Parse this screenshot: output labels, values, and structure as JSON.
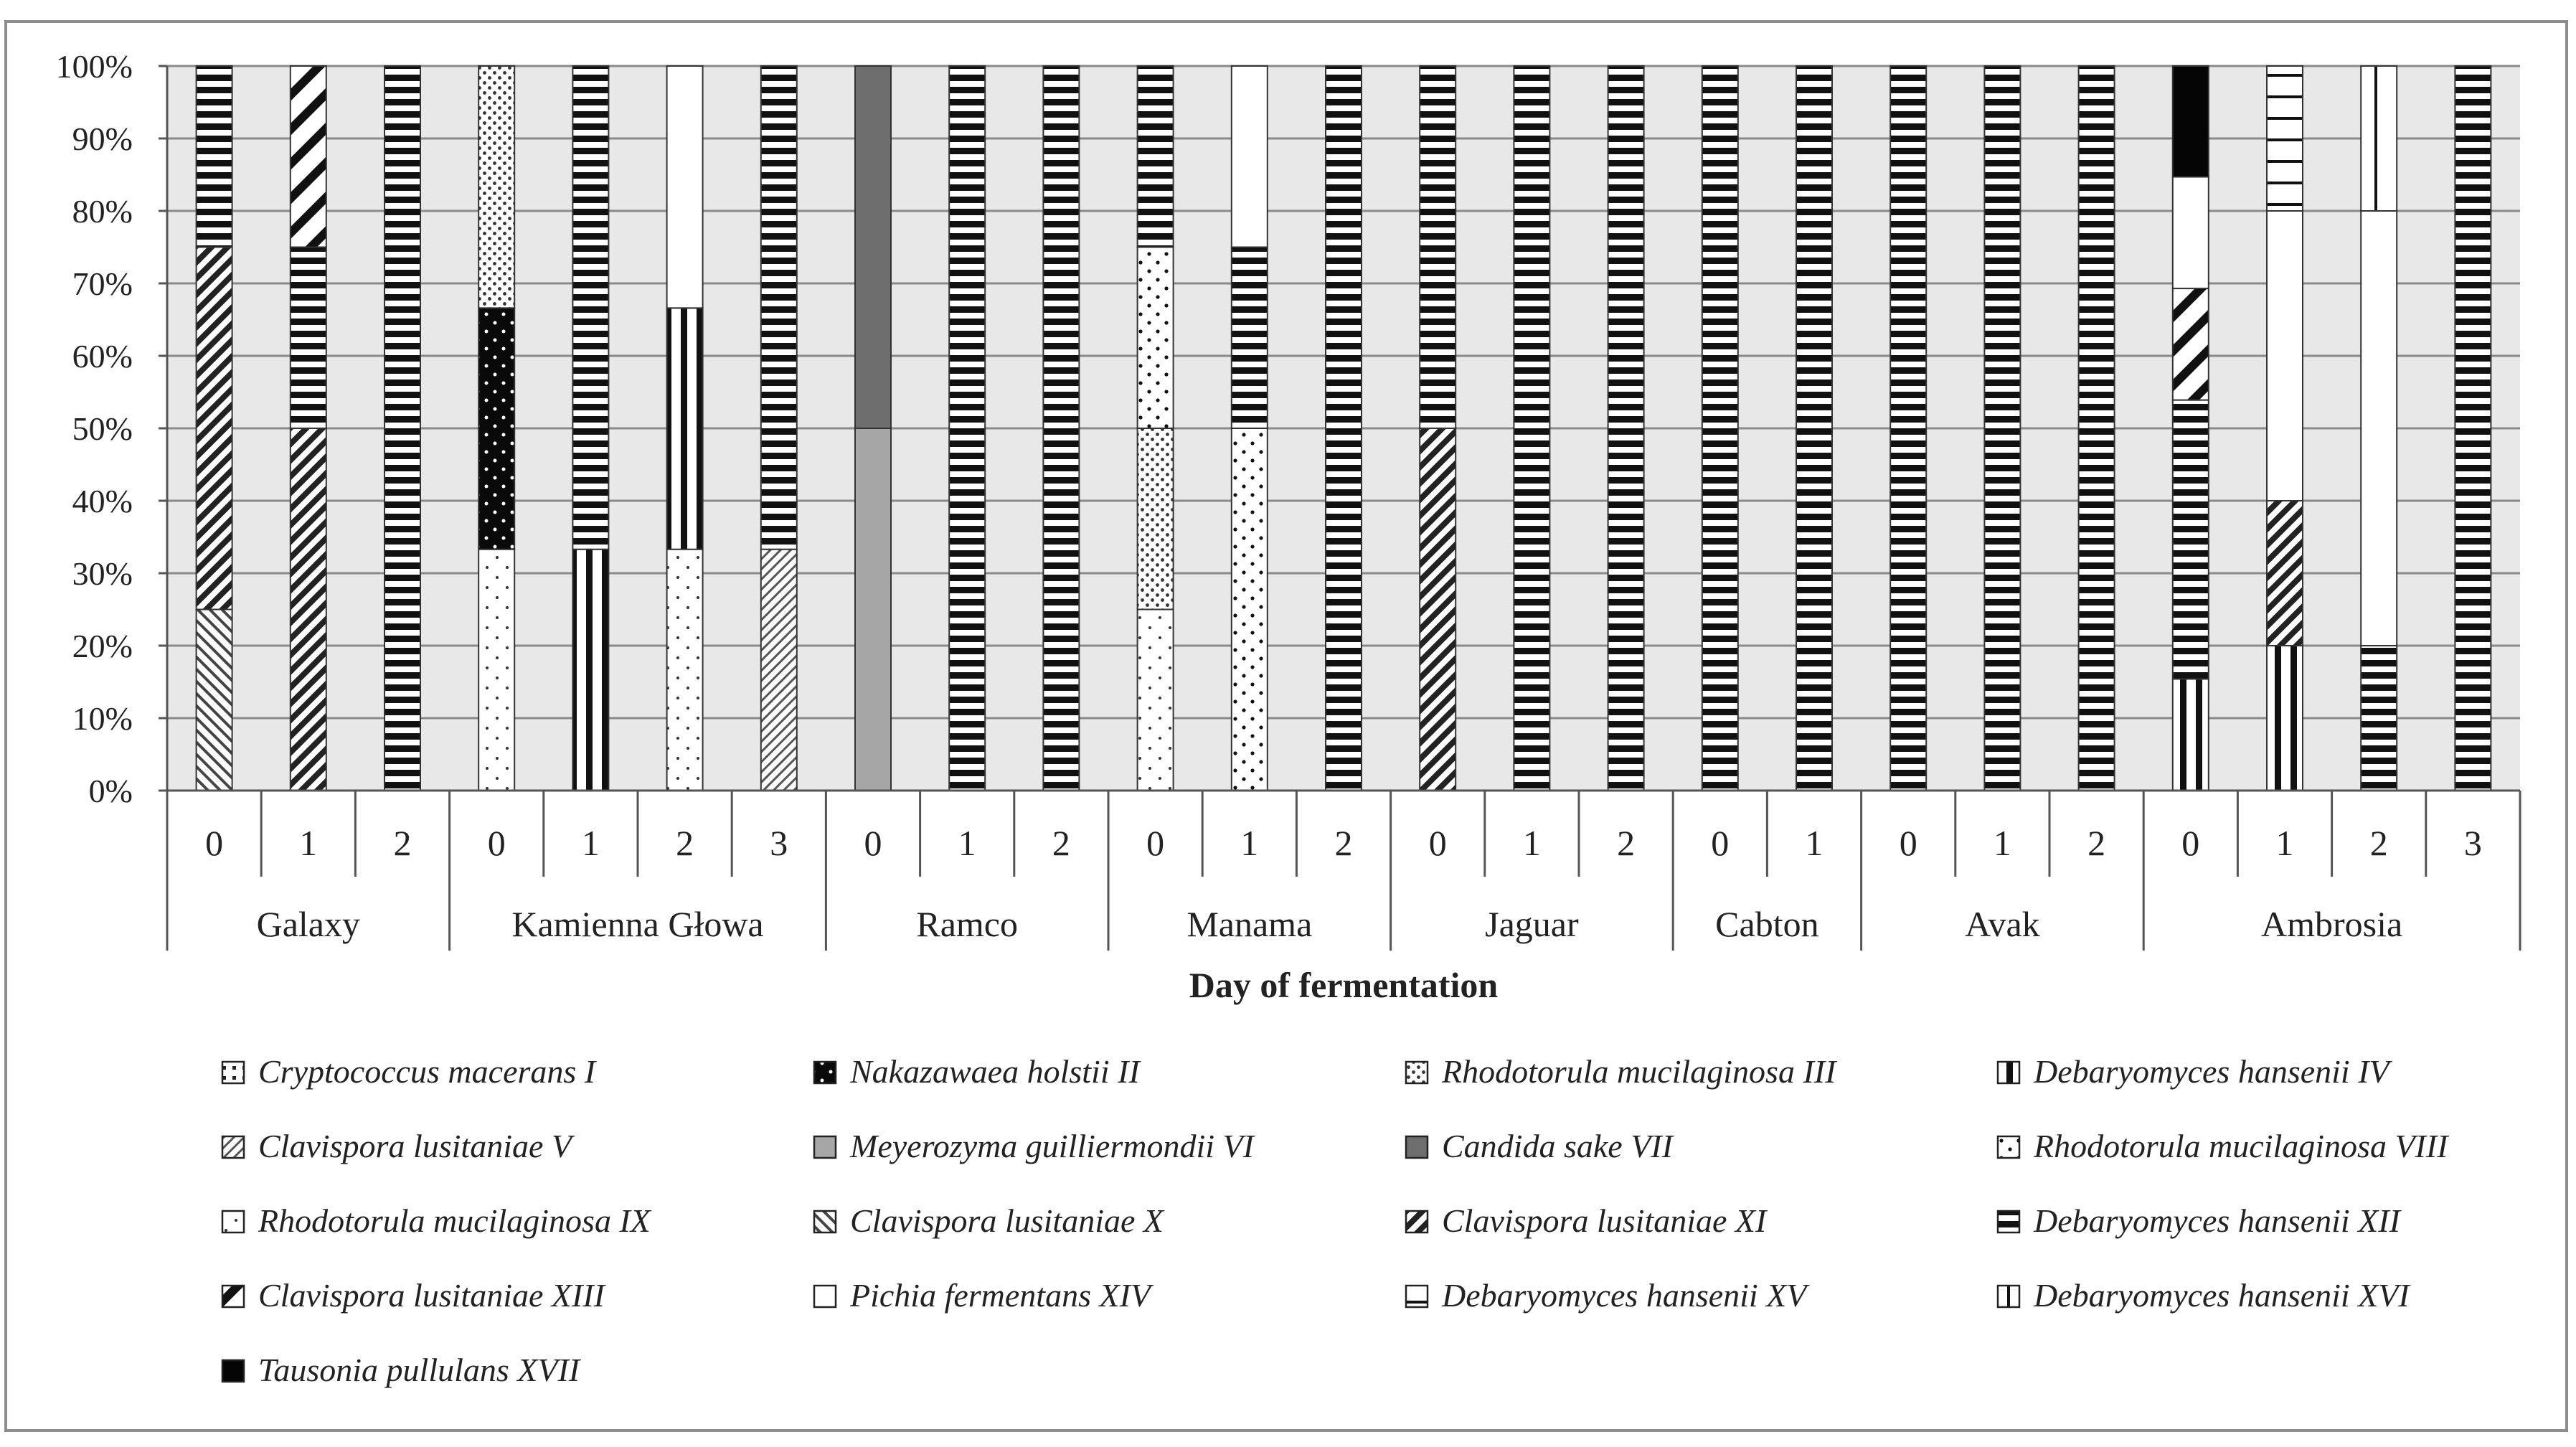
{
  "chart_data": {
    "type": "bar",
    "stacked": true,
    "xlabel": "Day of fermentation",
    "ylabel": "",
    "ylim": [
      0,
      100
    ],
    "y_ticks": [
      "0%",
      "10%",
      "20%",
      "30%",
      "40%",
      "50%",
      "60%",
      "70%",
      "80%",
      "90%",
      "100%"
    ],
    "groups": [
      {
        "name": "Galaxy",
        "days": [
          "0",
          "1",
          "2"
        ]
      },
      {
        "name": "Kamienna Głowa",
        "days": [
          "0",
          "1",
          "2",
          "3"
        ]
      },
      {
        "name": "Ramco",
        "days": [
          "0",
          "1",
          "2"
        ]
      },
      {
        "name": "Manama",
        "days": [
          "0",
          "1",
          "2"
        ]
      },
      {
        "name": "Jaguar",
        "days": [
          "0",
          "1",
          "2"
        ]
      },
      {
        "name": "Cabton",
        "days": [
          "0",
          "1"
        ]
      },
      {
        "name": "Avak",
        "days": [
          "0",
          "1",
          "2"
        ]
      },
      {
        "name": "Ambrosia",
        "days": [
          "0",
          "1",
          "2",
          "3"
        ]
      }
    ],
    "series": [
      {
        "name": "Cryptococcus macerans I",
        "pattern": "sq-dots"
      },
      {
        "name": "Nakazawaea holstii II",
        "pattern": "dots-dark"
      },
      {
        "name": "Rhodotorula mucilaginosa III",
        "pattern": "dots-dense"
      },
      {
        "name": "Debaryomyces hansenii IV",
        "pattern": "vlines-bold"
      },
      {
        "name": "Clavispora lusitaniae V",
        "pattern": "diag-fine"
      },
      {
        "name": "Meyerozyma guilliermondii VI",
        "pattern": "solid-light"
      },
      {
        "name": "Candida sake VII",
        "pattern": "solid-dark"
      },
      {
        "name": "Rhodotorula mucilaginosa VIII",
        "pattern": "dots-sparse"
      },
      {
        "name": "Rhodotorula mucilaginosa IX",
        "pattern": "dots-small"
      },
      {
        "name": "Clavispora lusitaniae X",
        "pattern": "diag-up"
      },
      {
        "name": "Clavispora lusitaniae XI",
        "pattern": "diag-dense"
      },
      {
        "name": "Debaryomyces hansenii XII",
        "pattern": "hlines-bold"
      },
      {
        "name": "Clavispora lusitaniae XIII",
        "pattern": "diag-wide"
      },
      {
        "name": "Pichia fermentans XIV",
        "pattern": "white"
      },
      {
        "name": "Debaryomyces hansenii XV",
        "pattern": "hlines-thin"
      },
      {
        "name": "Debaryomyces hansenii XVI",
        "pattern": "vlines-thin"
      },
      {
        "name": "Tausonia pullulans XVII",
        "pattern": "solid-black"
      }
    ],
    "bars": [
      {
        "group": "Galaxy",
        "day": "0",
        "segments": [
          {
            "s": 9,
            "v": 25
          },
          {
            "s": 10,
            "v": 50
          },
          {
            "s": 11,
            "v": 25
          }
        ]
      },
      {
        "group": "Galaxy",
        "day": "1",
        "segments": [
          {
            "s": 10,
            "v": 50
          },
          {
            "s": 11,
            "v": 25
          },
          {
            "s": 12,
            "v": 25
          }
        ]
      },
      {
        "group": "Galaxy",
        "day": "2",
        "segments": [
          {
            "s": 11,
            "v": 100
          }
        ]
      },
      {
        "group": "Kamienna Głowa",
        "day": "0",
        "segments": [
          {
            "s": 8,
            "v": 33.3
          },
          {
            "s": 1,
            "v": 33.3
          },
          {
            "s": 2,
            "v": 33.4
          }
        ]
      },
      {
        "group": "Kamienna Głowa",
        "day": "1",
        "segments": [
          {
            "s": 3,
            "v": 33.3
          },
          {
            "s": 11,
            "v": 66.7
          }
        ]
      },
      {
        "group": "Kamienna Głowa",
        "day": "2",
        "segments": [
          {
            "s": 8,
            "v": 33.3
          },
          {
            "s": 3,
            "v": 33.3
          },
          {
            "s": 13,
            "v": 33.4
          }
        ]
      },
      {
        "group": "Kamienna Głowa",
        "day": "3",
        "segments": [
          {
            "s": 4,
            "v": 33.3
          },
          {
            "s": 11,
            "v": 66.7
          }
        ]
      },
      {
        "group": "Ramco",
        "day": "0",
        "segments": [
          {
            "s": 5,
            "v": 50
          },
          {
            "s": 6,
            "v": 50
          }
        ]
      },
      {
        "group": "Ramco",
        "day": "1",
        "segments": [
          {
            "s": 11,
            "v": 100
          }
        ]
      },
      {
        "group": "Ramco",
        "day": "2",
        "segments": [
          {
            "s": 11,
            "v": 100
          }
        ]
      },
      {
        "group": "Manama",
        "day": "0",
        "segments": [
          {
            "s": 8,
            "v": 25
          },
          {
            "s": 2,
            "v": 25
          },
          {
            "s": 7,
            "v": 25
          },
          {
            "s": 11,
            "v": 25
          }
        ]
      },
      {
        "group": "Manama",
        "day": "1",
        "segments": [
          {
            "s": 7,
            "v": 50
          },
          {
            "s": 11,
            "v": 25
          },
          {
            "s": 13,
            "v": 25
          }
        ]
      },
      {
        "group": "Manama",
        "day": "2",
        "segments": [
          {
            "s": 11,
            "v": 100
          }
        ]
      },
      {
        "group": "Jaguar",
        "day": "0",
        "segments": [
          {
            "s": 10,
            "v": 50
          },
          {
            "s": 11,
            "v": 50
          }
        ]
      },
      {
        "group": "Jaguar",
        "day": "1",
        "segments": [
          {
            "s": 11,
            "v": 100
          }
        ]
      },
      {
        "group": "Jaguar",
        "day": "2",
        "segments": [
          {
            "s": 11,
            "v": 100
          }
        ]
      },
      {
        "group": "Cabton",
        "day": "0",
        "segments": [
          {
            "s": 11,
            "v": 100
          }
        ]
      },
      {
        "group": "Cabton",
        "day": "1",
        "segments": [
          {
            "s": 11,
            "v": 100
          }
        ]
      },
      {
        "group": "Avak",
        "day": "0",
        "segments": [
          {
            "s": 11,
            "v": 100
          }
        ]
      },
      {
        "group": "Avak",
        "day": "1",
        "segments": [
          {
            "s": 11,
            "v": 100
          }
        ]
      },
      {
        "group": "Avak",
        "day": "2",
        "segments": [
          {
            "s": 11,
            "v": 100
          }
        ]
      },
      {
        "group": "Ambrosia",
        "day": "0",
        "segments": [
          {
            "s": 3,
            "v": 15.4
          },
          {
            "s": 11,
            "v": 38.5
          },
          {
            "s": 12,
            "v": 15.4
          },
          {
            "s": 13,
            "v": 15.4
          },
          {
            "s": 16,
            "v": 15.3
          }
        ]
      },
      {
        "group": "Ambrosia",
        "day": "1",
        "segments": [
          {
            "s": 3,
            "v": 20
          },
          {
            "s": 10,
            "v": 20
          },
          {
            "s": 13,
            "v": 40
          },
          {
            "s": 14,
            "v": 20
          }
        ]
      },
      {
        "group": "Ambrosia",
        "day": "2",
        "segments": [
          {
            "s": 11,
            "v": 20
          },
          {
            "s": 13,
            "v": 60
          },
          {
            "s": 15,
            "v": 20
          }
        ]
      },
      {
        "group": "Ambrosia",
        "day": "3",
        "segments": [
          {
            "s": 11,
            "v": 100
          }
        ]
      }
    ]
  }
}
